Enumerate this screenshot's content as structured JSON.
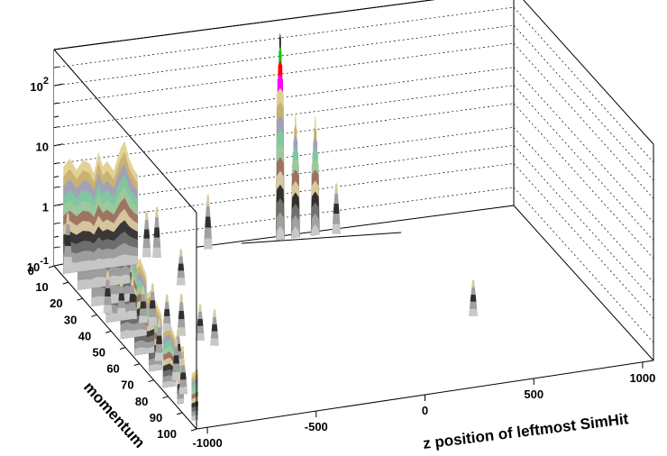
{
  "chart_data": {
    "type": "surface3d",
    "title": "",
    "xlabel": "z position of leftmost SimHit",
    "ylabel": "momentum",
    "zlabel": "",
    "x_ticks": [
      "-1000",
      "-500",
      "0",
      "500",
      "1000"
    ],
    "y_ticks": [
      "0",
      "10",
      "20",
      "30",
      "40",
      "50",
      "60",
      "70",
      "80",
      "90",
      "100"
    ],
    "z_ticks": [
      {
        "base": "10",
        "exp": "-1"
      },
      {
        "base": "1",
        "exp": ""
      },
      {
        "base": "10",
        "exp": ""
      },
      {
        "base": "10",
        "exp": "2"
      }
    ],
    "xlim": [
      -1050,
      1050
    ],
    "ylim": [
      0,
      100
    ],
    "zlim": [
      0.1,
      400
    ],
    "z_scale": "log",
    "grid": true,
    "palette": [
      "#c8c8c8",
      "#a0a0a0",
      "#707070",
      "#303030",
      "#d8c8a0",
      "#a07060",
      "#9cc89c",
      "#7fc8a0",
      "#a0a0b8",
      "#c8b070",
      "#e0d090",
      "#ff00ff",
      "#ff0000",
      "#00cc00",
      "#000000"
    ],
    "ridges": [
      {
        "y": 5,
        "points": [
          [
            -1040,
            6
          ],
          [
            -1010,
            8
          ],
          [
            -980,
            5
          ],
          [
            -950,
            7
          ],
          [
            -920,
            6
          ],
          [
            -900,
            4
          ],
          [
            -880,
            9
          ],
          [
            -860,
            5
          ],
          [
            -840,
            6
          ],
          [
            -810,
            4
          ],
          [
            -780,
            9
          ],
          [
            -760,
            12
          ],
          [
            -740,
            6
          ],
          [
            -720,
            4
          ],
          [
            -700,
            3
          ]
        ]
      },
      {
        "y": 15,
        "points": [
          [
            -1040,
            5
          ],
          [
            -1010,
            6
          ],
          [
            -980,
            4
          ],
          [
            -950,
            9
          ],
          [
            -920,
            5
          ],
          [
            -900,
            3
          ],
          [
            -880,
            6
          ],
          [
            -860,
            4
          ],
          [
            -840,
            3
          ],
          [
            -820,
            5
          ],
          [
            -800,
            2
          ]
        ]
      },
      {
        "y": 25,
        "points": [
          [
            -1040,
            4
          ],
          [
            -1010,
            5
          ],
          [
            -980,
            3
          ],
          [
            -950,
            6
          ],
          [
            -920,
            4
          ],
          [
            -900,
            2
          ],
          [
            -880,
            3
          ],
          [
            -860,
            2
          ]
        ]
      },
      {
        "y": 35,
        "points": [
          [
            -1040,
            3
          ],
          [
            -1010,
            4
          ],
          [
            -980,
            2
          ],
          [
            -950,
            3
          ],
          [
            -920,
            2
          ],
          [
            -900,
            1
          ]
        ]
      },
      {
        "y": 45,
        "points": [
          [
            -1040,
            2
          ],
          [
            -1010,
            3
          ],
          [
            -980,
            1.5
          ],
          [
            -950,
            2
          ],
          [
            -920,
            1
          ]
        ]
      },
      {
        "y": 55,
        "points": [
          [
            -1040,
            1.5
          ],
          [
            -1010,
            2
          ],
          [
            -980,
            1
          ],
          [
            -950,
            1.2
          ]
        ]
      },
      {
        "y": 65,
        "points": [
          [
            -1040,
            1.2
          ],
          [
            -1010,
            1.5
          ],
          [
            -980,
            0.8
          ]
        ]
      },
      {
        "y": 75,
        "points": [
          [
            -1040,
            1
          ],
          [
            -1010,
            1.2
          ],
          [
            -980,
            0.6
          ]
        ]
      },
      {
        "y": 85,
        "points": [
          [
            -1040,
            0.8
          ],
          [
            -1010,
            0.9
          ]
        ]
      },
      {
        "y": 95,
        "points": [
          [
            -1040,
            0.6
          ],
          [
            -1010,
            0.7
          ]
        ]
      }
    ],
    "peaks": [
      {
        "x": -30,
        "y": 2,
        "z": 280,
        "width": 40
      },
      {
        "x": 40,
        "y": 2,
        "z": 12,
        "width": 40
      },
      {
        "x": 130,
        "y": 2,
        "z": 10,
        "width": 40
      }
    ],
    "spikes": [
      {
        "x": -1000,
        "y": 2,
        "z": 0.8
      },
      {
        "x": -640,
        "y": 2,
        "z": 0.6
      },
      {
        "x": -600,
        "y": 3,
        "z": 0.7
      },
      {
        "x": -360,
        "y": 2,
        "z": 0.8
      },
      {
        "x": 220,
        "y": 3,
        "z": 0.7
      },
      {
        "x": -1000,
        "y": 30,
        "z": 0.5
      },
      {
        "x": -950,
        "y": 32,
        "z": 0.4
      },
      {
        "x": -920,
        "y": 35,
        "z": 0.5
      },
      {
        "x": -890,
        "y": 38,
        "z": 0.4
      },
      {
        "x": -860,
        "y": 40,
        "z": 0.5
      },
      {
        "x": -820,
        "y": 44,
        "z": 0.4
      },
      {
        "x": -780,
        "y": 48,
        "z": 0.5
      },
      {
        "x": -720,
        "y": 52,
        "z": 0.4
      },
      {
        "x": -680,
        "y": 56,
        "z": 0.4
      },
      {
        "x": -960,
        "y": 60,
        "z": 0.5
      },
      {
        "x": -900,
        "y": 64,
        "z": 0.4
      },
      {
        "x": -960,
        "y": 72,
        "z": 0.5
      },
      {
        "x": -980,
        "y": 80,
        "z": 0.4
      },
      {
        "x": -600,
        "y": 20,
        "z": 0.4
      },
      {
        "x": 480,
        "y": 60,
        "z": 0.4
      }
    ]
  }
}
